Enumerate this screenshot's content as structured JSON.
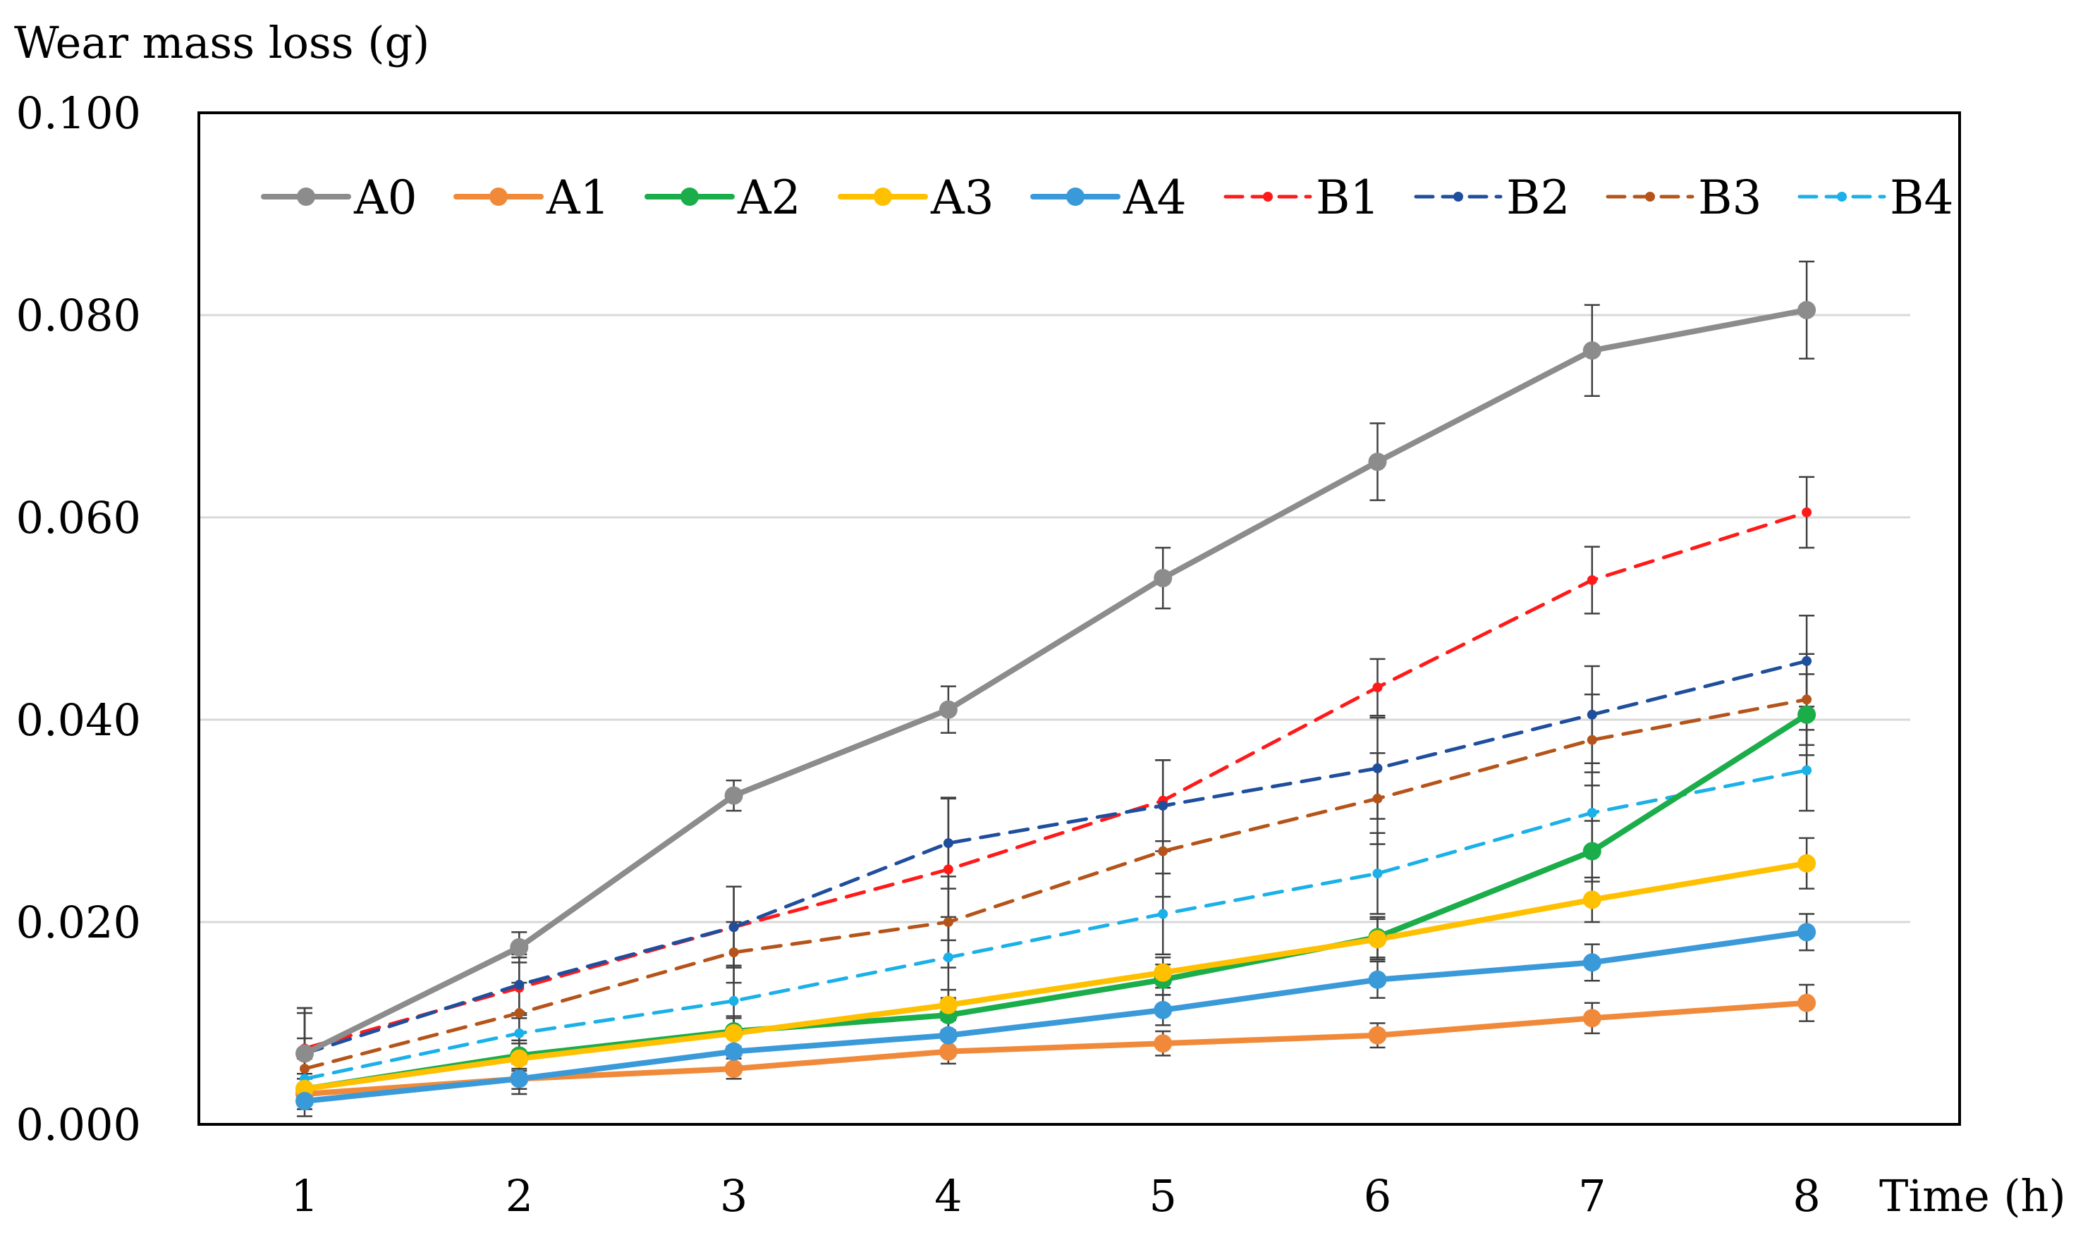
{
  "chart_data": {
    "type": "line",
    "title": "",
    "ylabel": "Wear mass loss (g)",
    "xlabel": "Time (h)",
    "x": [
      1,
      2,
      3,
      4,
      5,
      6,
      7,
      8
    ],
    "xtick_labels": [
      "1",
      "2",
      "3",
      "4",
      "5",
      "6",
      "7",
      "8"
    ],
    "ylim": [
      0,
      0.1
    ],
    "ytick_values": [
      0,
      0.02,
      0.04,
      0.06,
      0.08,
      0.1
    ],
    "ytick_labels": [
      "0.000",
      "0.020",
      "0.040",
      "0.060",
      "0.080",
      "0.100"
    ],
    "grid": "horizontal",
    "legend_position": "top",
    "series": [
      {
        "name": "A0",
        "color": "#8c8c8c",
        "style": "solid",
        "marker": "circle",
        "values": [
          0.007,
          0.0175,
          0.0325,
          0.041,
          0.054,
          0.0655,
          0.0765,
          0.0805
        ],
        "errors": [
          0.0045,
          0.0015,
          0.0015,
          0.0023,
          0.003,
          0.0038,
          0.0045,
          0.0048
        ]
      },
      {
        "name": "A1",
        "color": "#f08a3a",
        "style": "solid",
        "marker": "circle",
        "values": [
          0.003,
          0.0045,
          0.0055,
          0.0072,
          0.008,
          0.0088,
          0.0105,
          0.012
        ],
        "errors": [
          0.0015,
          0.001,
          0.001,
          0.0012,
          0.0012,
          0.0012,
          0.0015,
          0.0018
        ]
      },
      {
        "name": "A2",
        "color": "#1aad4a",
        "style": "solid",
        "marker": "circle",
        "values": [
          0.0035,
          0.0068,
          0.0092,
          0.0108,
          0.0143,
          0.0185,
          0.027,
          0.0405
        ],
        "errors": [
          0.0015,
          0.0015,
          0.0015,
          0.0015,
          0.0015,
          0.002,
          0.003,
          0.004
        ]
      },
      {
        "name": "A3",
        "color": "#ffc000",
        "style": "solid",
        "marker": "circle",
        "values": [
          0.0035,
          0.0065,
          0.009,
          0.0118,
          0.015,
          0.0183,
          0.0222,
          0.0258
        ],
        "errors": [
          0.0015,
          0.0015,
          0.0015,
          0.0015,
          0.0015,
          0.002,
          0.0022,
          0.0025
        ]
      },
      {
        "name": "A4",
        "color": "#3a9ad9",
        "style": "solid",
        "marker": "circle",
        "values": [
          0.0023,
          0.0045,
          0.0072,
          0.0088,
          0.0113,
          0.0143,
          0.016,
          0.019
        ],
        "errors": [
          0.0015,
          0.0015,
          0.0015,
          0.0015,
          0.0015,
          0.0018,
          0.0018,
          0.0018
        ]
      },
      {
        "name": "B1",
        "color": "#ff1a1a",
        "style": "dashed",
        "marker": "dot",
        "values": [
          0.0075,
          0.0135,
          0.0195,
          0.0252,
          0.032,
          0.0432,
          0.0538,
          0.0605
        ],
        "errors": [
          0.004,
          0.003,
          0.004,
          0.007,
          0.004,
          0.0028,
          0.0033,
          0.0035
        ]
      },
      {
        "name": "B2",
        "color": "#1f4e9c",
        "style": "dashed",
        "marker": "dot",
        "values": [
          0.007,
          0.0138,
          0.0195,
          0.0278,
          0.0315,
          0.0352,
          0.0405,
          0.0458
        ],
        "errors": [
          0.004,
          0.003,
          0.004,
          0.0045,
          0.0045,
          0.005,
          0.0048,
          0.0045
        ]
      },
      {
        "name": "B3",
        "color": "#b5541a",
        "style": "dashed",
        "marker": "dot",
        "values": [
          0.0055,
          0.011,
          0.017,
          0.02,
          0.027,
          0.0322,
          0.038,
          0.042
        ],
        "errors": [
          0.003,
          0.003,
          0.003,
          0.0045,
          0.0045,
          0.0045,
          0.0045,
          0.0045
        ]
      },
      {
        "name": "B4",
        "color": "#1ab0e8",
        "style": "dashed",
        "marker": "dot",
        "values": [
          0.0045,
          0.009,
          0.0122,
          0.0165,
          0.0208,
          0.0248,
          0.0308,
          0.035
        ],
        "errors": [
          0.002,
          0.002,
          0.0035,
          0.004,
          0.004,
          0.004,
          0.004,
          0.004
        ]
      }
    ]
  }
}
